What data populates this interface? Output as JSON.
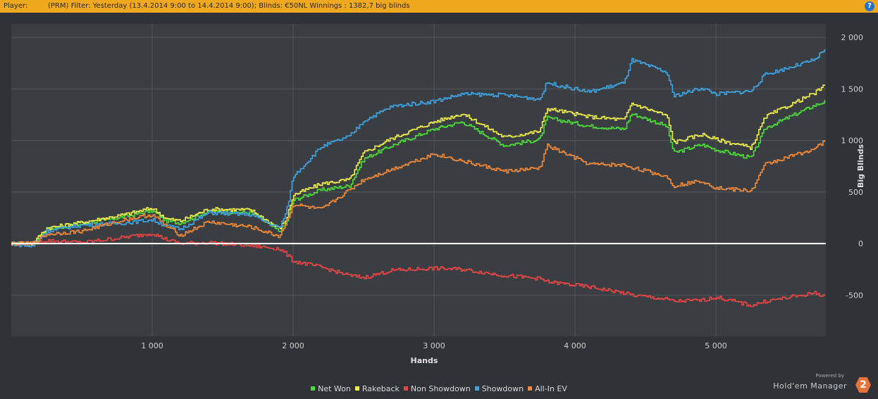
{
  "header": {
    "player_label": "Player:",
    "filter_text": "(PRM) Filter: Yesterday (13.4.2014 9:00 to 14.4.2014 9:00); Blinds: €50NL Winnings : 1382,7 big blinds",
    "help_icon": "help-icon",
    "help_symbol": "?"
  },
  "branding": {
    "powered_by": "Powered by",
    "name": "Hold'em Manager",
    "badge": "2"
  },
  "colors": {
    "topbar": "#f0a81e",
    "background": "#2f3236",
    "plot_background": "#3a3d42",
    "grid": "#53575d",
    "zero_line": "#ffffff"
  },
  "chart_data": {
    "type": "line",
    "xlabel": "Hands",
    "ylabel": "Big Blinds",
    "xlim": [
      0,
      5780
    ],
    "ylim": [
      -900,
      2130
    ],
    "x_ticks": [
      1000,
      2000,
      3000,
      4000,
      5000
    ],
    "x_tick_labels": [
      "1 000",
      "2 000",
      "3 000",
      "4 000",
      "5 000"
    ],
    "y_ticks": [
      2000,
      1500,
      1000,
      500,
      0,
      -500
    ],
    "y_tick_labels": [
      "2 000",
      "1 500",
      "1 000",
      "500",
      "0",
      "-500"
    ],
    "grid": true,
    "legend_position": "bottom",
    "x": [
      0,
      150,
      250,
      500,
      800,
      1000,
      1100,
      1200,
      1400,
      1700,
      1900,
      1950,
      2000,
      2200,
      2400,
      2500,
      2700,
      3000,
      3200,
      3500,
      3750,
      3800,
      4100,
      4350,
      4400,
      4650,
      4700,
      4900,
      5000,
      5250,
      5350,
      5700,
      5780
    ],
    "series": [
      {
        "name": "Net Won",
        "color": "#4ddb3a",
        "values": [
          0,
          0,
          140,
          190,
          260,
          320,
          220,
          200,
          310,
          300,
          120,
          200,
          420,
          520,
          560,
          820,
          950,
          1110,
          1180,
          950,
          1010,
          1220,
          1140,
          1110,
          1260,
          1140,
          880,
          960,
          910,
          830,
          1120,
          1340,
          1383
        ]
      },
      {
        "name": "Rakeback",
        "color": "#f0ee4a",
        "values": [
          0,
          0,
          150,
          205,
          280,
          345,
          240,
          220,
          335,
          325,
          145,
          235,
          470,
          580,
          620,
          880,
          1020,
          1180,
          1260,
          1030,
          1090,
          1310,
          1230,
          1200,
          1360,
          1240,
          980,
          1060,
          1010,
          930,
          1230,
          1460,
          1540
        ]
      },
      {
        "name": "Non Showdown",
        "color": "#e84545",
        "values": [
          0,
          0,
          30,
          10,
          60,
          100,
          40,
          0,
          10,
          -20,
          -50,
          -100,
          -170,
          -230,
          -310,
          -330,
          -260,
          -240,
          -250,
          -310,
          -340,
          -370,
          -420,
          -480,
          -500,
          -540,
          -560,
          -550,
          -520,
          -600,
          -560,
          -480,
          -510
        ]
      },
      {
        "name": "Showdown",
        "color": "#3ea3e0",
        "values": [
          0,
          -30,
          120,
          180,
          200,
          230,
          170,
          140,
          300,
          280,
          150,
          300,
          650,
          940,
          1040,
          1190,
          1330,
          1380,
          1450,
          1440,
          1400,
          1560,
          1470,
          1560,
          1780,
          1660,
          1430,
          1510,
          1450,
          1480,
          1640,
          1780,
          1900
        ]
      },
      {
        "name": "All-In EV",
        "color": "#f0893a",
        "values": [
          0,
          0,
          90,
          120,
          230,
          280,
          170,
          80,
          210,
          160,
          70,
          200,
          380,
          330,
          520,
          620,
          720,
          870,
          800,
          700,
          730,
          950,
          770,
          760,
          740,
          650,
          560,
          610,
          540,
          510,
          770,
          920,
          1000
        ]
      }
    ]
  }
}
